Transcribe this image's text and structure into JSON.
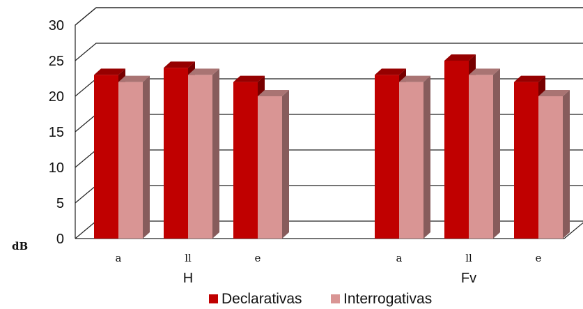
{
  "chart_data": {
    "type": "bar",
    "ylabel": "dB",
    "ylim": [
      0,
      30
    ],
    "yticks": [
      "0",
      "5",
      "10",
      "15",
      "20",
      "25",
      "30"
    ],
    "groups": [
      {
        "name": "H",
        "categories": [
          "a",
          "ll",
          "e"
        ]
      },
      {
        "name": "Fv",
        "categories": [
          "a",
          "ll",
          "e"
        ]
      }
    ],
    "series": [
      {
        "name": "Declarativas",
        "color": "#c00000",
        "values": [
          23,
          24,
          22,
          23,
          25,
          22
        ]
      },
      {
        "name": "Interrogativas",
        "color": "#d99594",
        "values": [
          22,
          23,
          20,
          22,
          23,
          20
        ]
      }
    ],
    "grid": true,
    "legend": "bottom"
  }
}
